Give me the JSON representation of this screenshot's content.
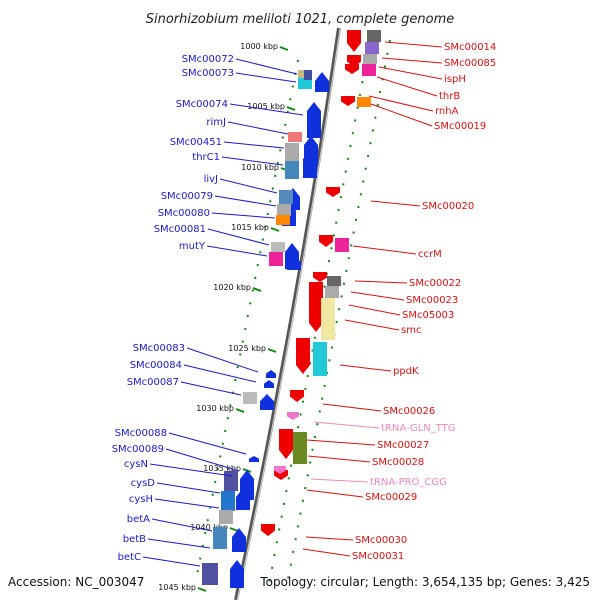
{
  "title": "Sinorhizobium meliloti 1021, complete genome",
  "accession": "Accession: NC_003047",
  "summary": "Topology: circular; Length: 3,654,135 bp; Genes: 3,425",
  "colors": {
    "left_label": "#1a1acc",
    "right_label": "#dd1111",
    "trna_label": "#ee88bb",
    "backbone": "#888888",
    "tick": "#118811"
  },
  "ticks": [
    "1000 kbp",
    "1005 kbp",
    "1010 kbp",
    "1015 kbp",
    "1020 kbp",
    "1025 kbp",
    "1030 kbp",
    "1035 kbp",
    "1040 kbp",
    "1045 kbp"
  ],
  "left_genes": [
    "SMc00072",
    "SMc00073",
    "SMc00074",
    "rimJ",
    "SMc00451",
    "thrC1",
    "livJ",
    "SMc00079",
    "SMc00080",
    "SMc00081",
    "mutY",
    "SMc00083",
    "SMc00084",
    "SMc00087",
    "SMc00088",
    "SMc00089",
    "cysN",
    "cysD",
    "cysH",
    "betA",
    "betB",
    "betC"
  ],
  "right_genes": [
    "SMc00014",
    "SMc00085",
    "ispH",
    "thrB",
    "rnhA",
    "SMc00019",
    "SMc00020",
    "ccrM",
    "SMc00022",
    "SMc00023",
    "SMc05003",
    "smc",
    "ppdK",
    "SMc00026",
    "tRNA-GLN_TTG",
    "SMc00027",
    "SMc00028",
    "tRNA-PRO_CGG",
    "SMc00029",
    "SMc00030",
    "SMc00031"
  ]
}
